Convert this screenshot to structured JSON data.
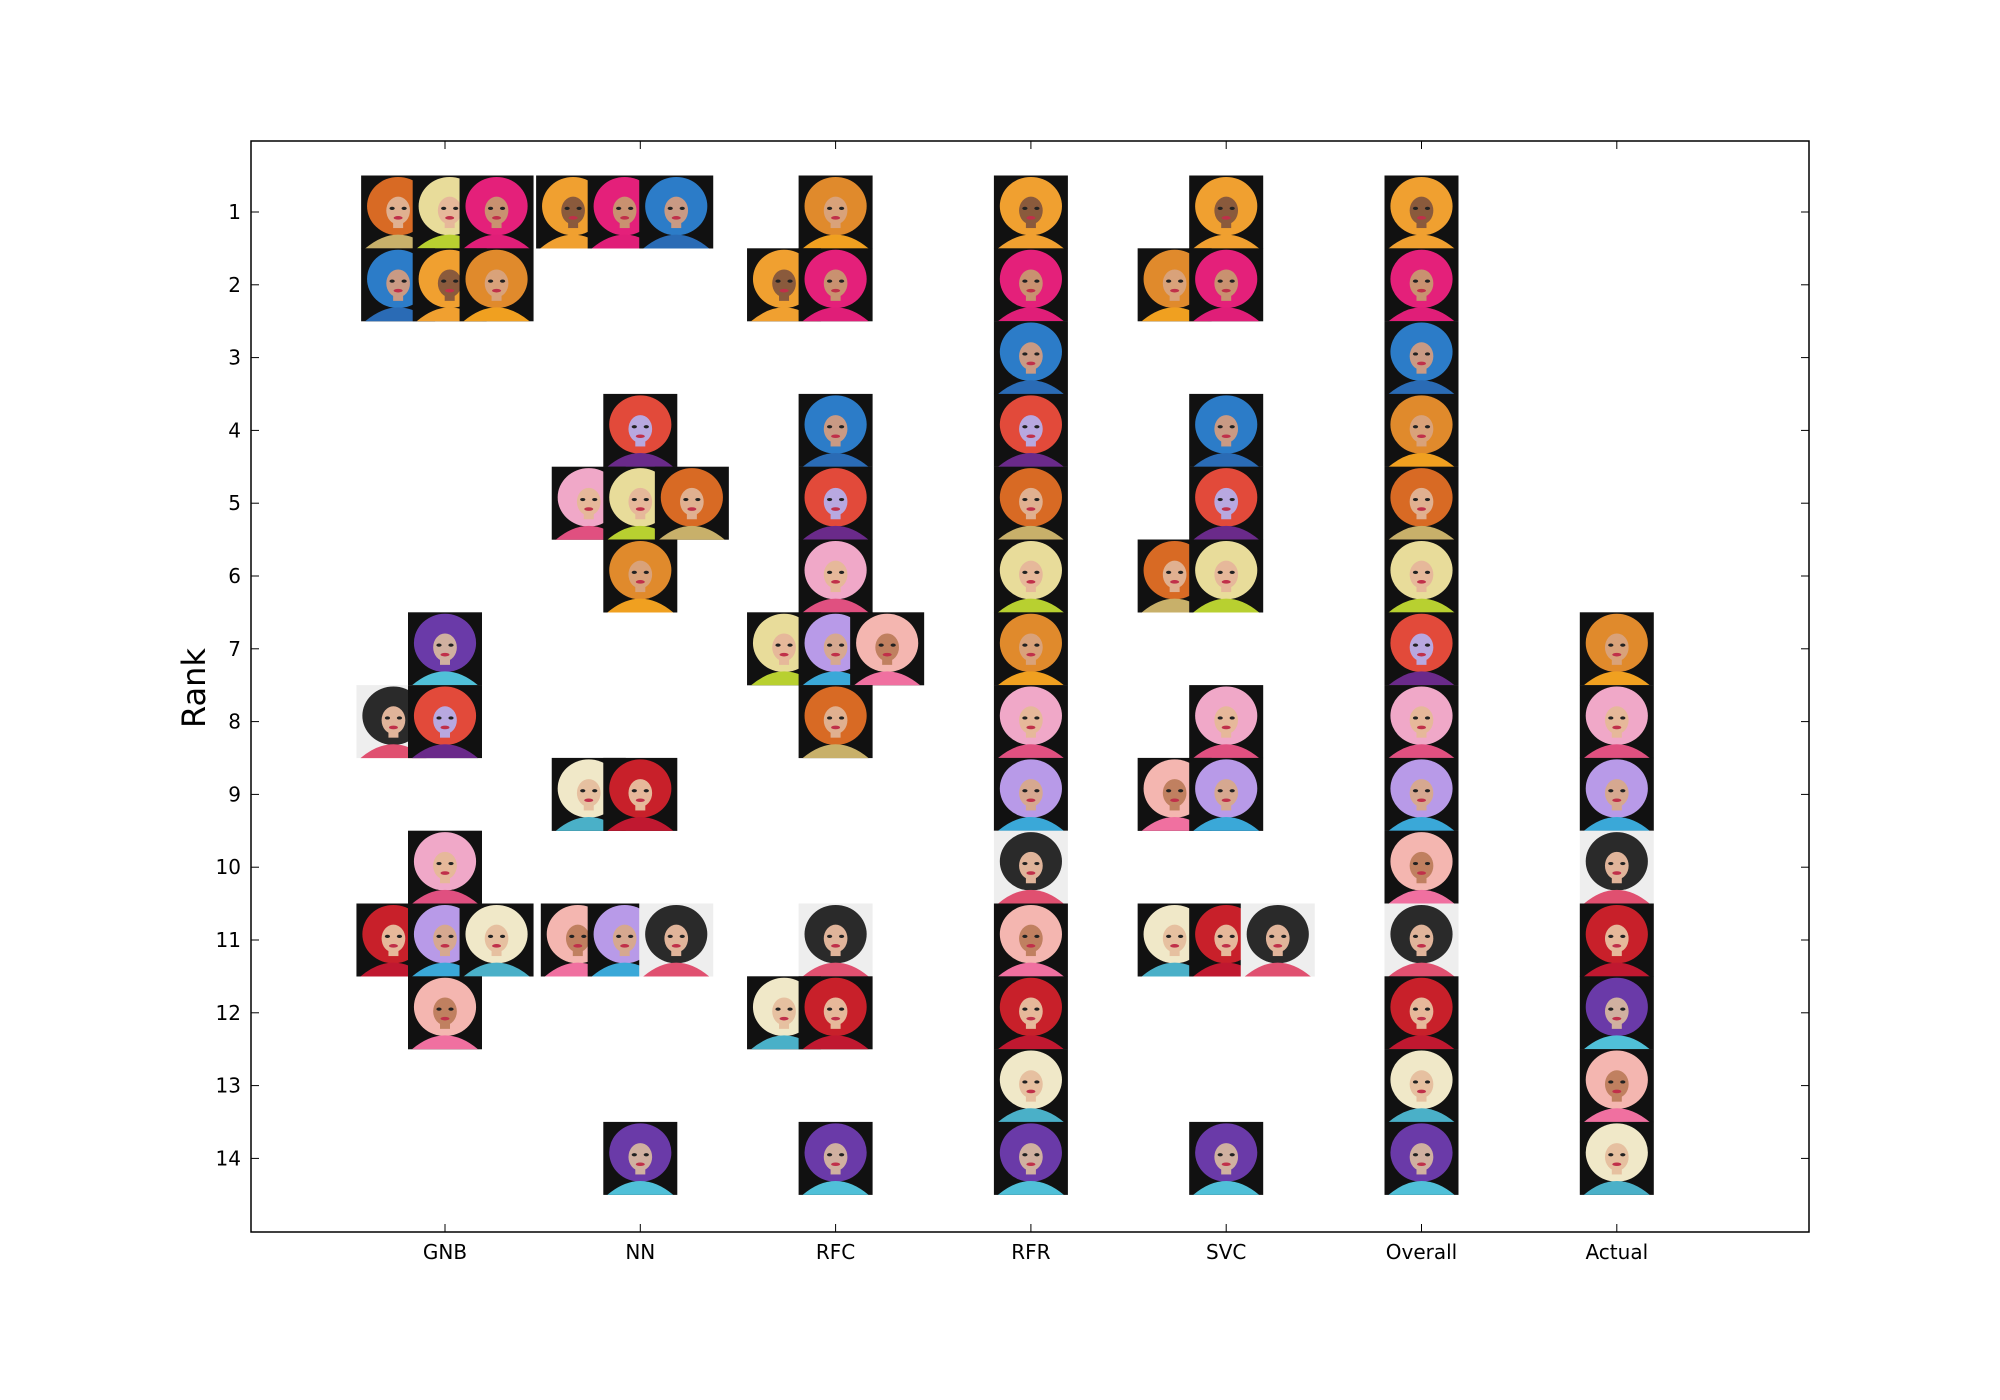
{
  "chart_data": {
    "type": "scatter",
    "title": "",
    "xlabel": "",
    "ylabel": "Rank",
    "categories": [
      "GNB",
      "NN",
      "RFC",
      "RFR",
      "SVC",
      "Overall",
      "Actual"
    ],
    "y_ticks": [
      "1",
      "2",
      "3",
      "4",
      "5",
      "6",
      "7",
      "8",
      "9",
      "10",
      "11",
      "12",
      "13",
      "14"
    ],
    "ylim": [
      0.5,
      14.5
    ],
    "y_inverted": true,
    "grid": false,
    "legend": "none",
    "palette": {
      "orange": {
        "bg": "#111111",
        "hair": "#e08a2c",
        "skin": "#d9a27a",
        "outfit": "#f0a020"
      },
      "blonde": {
        "bg": "#111111",
        "hair": "#e8dc9a",
        "skin": "#e6b89a",
        "outfit": "#b8d030"
      },
      "pink": {
        "bg": "#111111",
        "hair": "#e4207a",
        "skin": "#c99170",
        "outfit": "#e01e78"
      },
      "blue": {
        "bg": "#111111",
        "hair": "#2c7cc8",
        "skin": "#c99a84",
        "outfit": "#2a6bb5"
      },
      "crown": {
        "bg": "#111111",
        "hair": "#f0a030",
        "skin": "#8a5a3c",
        "outfit": "#f0a030"
      },
      "ginger": {
        "bg": "#111111",
        "hair": "#d86a24",
        "skin": "#e0b090",
        "outfit": "#c8b06a"
      },
      "purple": {
        "bg": "#111111",
        "hair": "#e24a3a",
        "skin": "#b8a8e0",
        "outfit": "#6a2a8a"
      },
      "pastel": {
        "bg": "#111111",
        "hair": "#f0a8c8",
        "skin": "#e6b89a",
        "outfit": "#e05080"
      },
      "lavender": {
        "bg": "#111111",
        "hair": "#b89ae8",
        "skin": "#d6a890",
        "outfit": "#3aa8d8"
      },
      "peach": {
        "bg": "#111111",
        "hair": "#f4b6b0",
        "skin": "#c08060",
        "outfit": "#f070a0"
      },
      "brunette": {
        "bg": "#eeeeee",
        "hair": "#2a2a2a",
        "skin": "#e0b49a",
        "outfit": "#e05070"
      },
      "red": {
        "bg": "#111111",
        "hair": "#c8202a",
        "skin": "#e6b89a",
        "outfit": "#c01830"
      },
      "platinum": {
        "bg": "#111111",
        "hair": "#f0e8c8",
        "skin": "#e6c0a0",
        "outfit": "#4ab0c8"
      },
      "teal": {
        "bg": "#111111",
        "hair": "#6a3aa8",
        "skin": "#d0b0a0",
        "outfit": "#50c0d8"
      }
    },
    "series": [
      {
        "category": "GNB",
        "points": [
          {
            "y": 1,
            "dx": -0.3,
            "face": "ginger"
          },
          {
            "y": 1,
            "dx": 0.03,
            "face": "blonde"
          },
          {
            "y": 1,
            "dx": 0.33,
            "face": "pink"
          },
          {
            "y": 2,
            "dx": -0.3,
            "face": "blue"
          },
          {
            "y": 2,
            "dx": 0.03,
            "face": "crown"
          },
          {
            "y": 2,
            "dx": 0.33,
            "face": "orange"
          },
          {
            "y": 7,
            "dx": 0.0,
            "face": "teal"
          },
          {
            "y": 8,
            "dx": -0.33,
            "face": "brunette"
          },
          {
            "y": 8,
            "dx": 0.0,
            "face": "purple"
          },
          {
            "y": 10,
            "dx": 0.0,
            "face": "pastel"
          },
          {
            "y": 11,
            "dx": -0.33,
            "face": "red"
          },
          {
            "y": 11,
            "dx": 0.0,
            "face": "lavender"
          },
          {
            "y": 11,
            "dx": 0.33,
            "face": "platinum"
          },
          {
            "y": 12,
            "dx": 0.0,
            "face": "peach"
          }
        ]
      },
      {
        "category": "NN",
        "points": [
          {
            "y": 1,
            "dx": -0.43,
            "face": "crown"
          },
          {
            "y": 1,
            "dx": -0.1,
            "face": "pink"
          },
          {
            "y": 1,
            "dx": 0.23,
            "face": "blue"
          },
          {
            "y": 4,
            "dx": 0.0,
            "face": "purple"
          },
          {
            "y": 5,
            "dx": -0.33,
            "face": "pastel"
          },
          {
            "y": 5,
            "dx": 0.0,
            "face": "blonde"
          },
          {
            "y": 5,
            "dx": 0.33,
            "face": "ginger"
          },
          {
            "y": 6,
            "dx": 0.0,
            "face": "orange"
          },
          {
            "y": 9,
            "dx": -0.33,
            "face": "platinum"
          },
          {
            "y": 9,
            "dx": 0.0,
            "face": "red"
          },
          {
            "y": 11,
            "dx": -0.4,
            "face": "peach"
          },
          {
            "y": 11,
            "dx": -0.1,
            "face": "lavender"
          },
          {
            "y": 11,
            "dx": 0.23,
            "face": "brunette"
          },
          {
            "y": 14,
            "dx": 0.0,
            "face": "teal"
          }
        ]
      },
      {
        "category": "RFC",
        "points": [
          {
            "y": 1,
            "dx": 0.0,
            "face": "orange"
          },
          {
            "y": 2,
            "dx": -0.33,
            "face": "crown"
          },
          {
            "y": 2,
            "dx": 0.0,
            "face": "pink"
          },
          {
            "y": 4,
            "dx": 0.0,
            "face": "blue"
          },
          {
            "y": 5,
            "dx": 0.0,
            "face": "purple"
          },
          {
            "y": 6,
            "dx": 0.0,
            "face": "pastel"
          },
          {
            "y": 7,
            "dx": -0.33,
            "face": "blonde"
          },
          {
            "y": 7,
            "dx": 0.0,
            "face": "lavender"
          },
          {
            "y": 7,
            "dx": 0.33,
            "face": "peach"
          },
          {
            "y": 8,
            "dx": 0.0,
            "face": "ginger"
          },
          {
            "y": 11,
            "dx": 0.0,
            "face": "brunette"
          },
          {
            "y": 12,
            "dx": -0.33,
            "face": "platinum"
          },
          {
            "y": 12,
            "dx": 0.0,
            "face": "red"
          },
          {
            "y": 14,
            "dx": 0.0,
            "face": "teal"
          }
        ]
      },
      {
        "category": "RFR",
        "points": [
          {
            "y": 1,
            "dx": 0,
            "face": "crown"
          },
          {
            "y": 2,
            "dx": 0,
            "face": "pink"
          },
          {
            "y": 3,
            "dx": 0,
            "face": "blue"
          },
          {
            "y": 4,
            "dx": 0,
            "face": "purple"
          },
          {
            "y": 5,
            "dx": 0,
            "face": "ginger"
          },
          {
            "y": 6,
            "dx": 0,
            "face": "blonde"
          },
          {
            "y": 7,
            "dx": 0,
            "face": "orange"
          },
          {
            "y": 8,
            "dx": 0,
            "face": "pastel"
          },
          {
            "y": 9,
            "dx": 0,
            "face": "lavender"
          },
          {
            "y": 10,
            "dx": 0,
            "face": "brunette"
          },
          {
            "y": 11,
            "dx": 0,
            "face": "peach"
          },
          {
            "y": 12,
            "dx": 0,
            "face": "red"
          },
          {
            "y": 13,
            "dx": 0,
            "face": "platinum"
          },
          {
            "y": 14,
            "dx": 0,
            "face": "teal"
          }
        ]
      },
      {
        "category": "SVC",
        "points": [
          {
            "y": 1,
            "dx": 0.0,
            "face": "crown"
          },
          {
            "y": 2,
            "dx": -0.33,
            "face": "orange"
          },
          {
            "y": 2,
            "dx": 0.0,
            "face": "pink"
          },
          {
            "y": 4,
            "dx": 0.0,
            "face": "blue"
          },
          {
            "y": 5,
            "dx": 0.0,
            "face": "purple"
          },
          {
            "y": 6,
            "dx": -0.33,
            "face": "ginger"
          },
          {
            "y": 6,
            "dx": 0.0,
            "face": "blonde"
          },
          {
            "y": 8,
            "dx": 0.0,
            "face": "pastel"
          },
          {
            "y": 9,
            "dx": -0.33,
            "face": "peach"
          },
          {
            "y": 9,
            "dx": 0.0,
            "face": "lavender"
          },
          {
            "y": 11,
            "dx": -0.33,
            "face": "platinum"
          },
          {
            "y": 11,
            "dx": 0.0,
            "face": "red"
          },
          {
            "y": 11,
            "dx": 0.33,
            "face": "brunette"
          },
          {
            "y": 14,
            "dx": 0.0,
            "face": "teal"
          }
        ]
      },
      {
        "category": "Overall",
        "points": [
          {
            "y": 1,
            "dx": 0,
            "face": "crown"
          },
          {
            "y": 2,
            "dx": 0,
            "face": "pink"
          },
          {
            "y": 3,
            "dx": 0,
            "face": "blue"
          },
          {
            "y": 4,
            "dx": 0,
            "face": "orange"
          },
          {
            "y": 5,
            "dx": 0,
            "face": "ginger"
          },
          {
            "y": 6,
            "dx": 0,
            "face": "blonde"
          },
          {
            "y": 7,
            "dx": 0,
            "face": "purple"
          },
          {
            "y": 8,
            "dx": 0,
            "face": "pastel"
          },
          {
            "y": 9,
            "dx": 0,
            "face": "lavender"
          },
          {
            "y": 10,
            "dx": 0,
            "face": "peach"
          },
          {
            "y": 11,
            "dx": 0,
            "face": "brunette"
          },
          {
            "y": 12,
            "dx": 0,
            "face": "red"
          },
          {
            "y": 13,
            "dx": 0,
            "face": "platinum"
          },
          {
            "y": 14,
            "dx": 0,
            "face": "teal"
          }
        ]
      },
      {
        "category": "Actual",
        "points": [
          {
            "y": 7,
            "dx": 0,
            "face": "orange"
          },
          {
            "y": 8,
            "dx": 0,
            "face": "pastel"
          },
          {
            "y": 9,
            "dx": 0,
            "face": "lavender"
          },
          {
            "y": 10,
            "dx": 0,
            "face": "brunette"
          },
          {
            "y": 11,
            "dx": 0,
            "face": "red"
          },
          {
            "y": 12,
            "dx": 0,
            "face": "teal"
          },
          {
            "y": 13,
            "dx": 0,
            "face": "peach"
          },
          {
            "y": 14,
            "dx": 0,
            "face": "platinum"
          }
        ]
      }
    ]
  }
}
